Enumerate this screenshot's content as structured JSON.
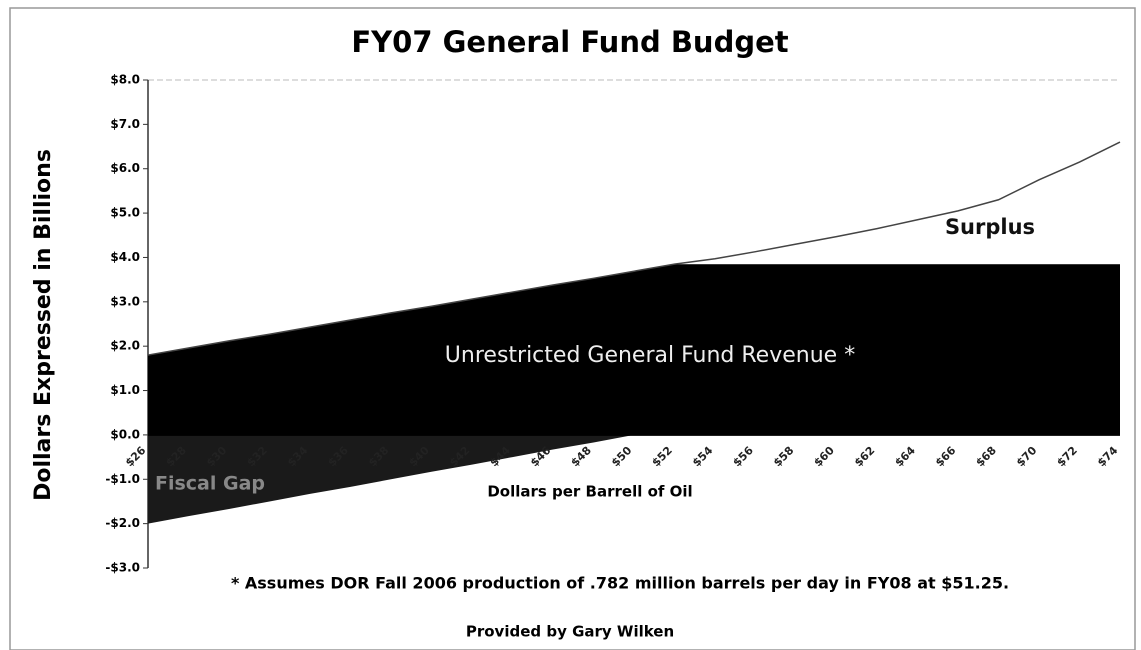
{
  "chart_data": {
    "type": "area",
    "title": "FY07 General Fund Budget",
    "y_label": "Dollars Expressed in Billions",
    "x_label": "Dollars per Barrell of Oil",
    "footnote": "* Assumes DOR Fall 2006 production of .782 million barrels per day in FY08 at $51.25.",
    "source": "Provided by Gary Wilken",
    "categories": [
      "$26",
      "$28",
      "$30",
      "$32",
      "$34",
      "$36",
      "$38",
      "$40",
      "$42",
      "$44",
      "$46",
      "$48",
      "$50",
      "$52",
      "$54",
      "$56",
      "$58",
      "$60",
      "$62",
      "$64",
      "$66",
      "$68",
      "$70",
      "$72",
      "$74"
    ],
    "series": [
      {
        "name": "Unrestricted General Fund Revenue *",
        "color": "#000000",
        "values": [
          1.8,
          1.96,
          2.12,
          2.27,
          2.43,
          2.59,
          2.75,
          2.9,
          3.06,
          3.22,
          3.38,
          3.53,
          3.69,
          3.85,
          3.85,
          3.85,
          3.85,
          3.85,
          3.85,
          3.85,
          3.85,
          3.85,
          3.85,
          3.85,
          3.85
        ]
      },
      {
        "name": "Surplus",
        "color": "#ffffff",
        "values": [
          0,
          0,
          0,
          0,
          0,
          0,
          0,
          0,
          0,
          0,
          0,
          0,
          0,
          0,
          0.12,
          0.28,
          0.45,
          0.62,
          0.8,
          1.0,
          1.2,
          1.45,
          1.9,
          2.3,
          2.75
        ]
      },
      {
        "name": "Fiscal Gap",
        "color": "#1a1a1a",
        "values": [
          -2.0,
          -1.83,
          -1.67,
          -1.5,
          -1.33,
          -1.17,
          -1.0,
          -0.83,
          -0.67,
          -0.5,
          -0.33,
          -0.17,
          0,
          0,
          0,
          0,
          0,
          0,
          0,
          0,
          0,
          0,
          0,
          0,
          0
        ]
      }
    ],
    "ylim": [
      -3,
      8
    ],
    "yticks": [
      {
        "value": -3,
        "label": "-$3.0"
      },
      {
        "value": -2,
        "label": "-$2.0"
      },
      {
        "value": -1,
        "label": "-$1.0"
      },
      {
        "value": 0,
        "label": "$0.0"
      },
      {
        "value": 1,
        "label": "$1.0"
      },
      {
        "value": 2,
        "label": "$2.0"
      },
      {
        "value": 3,
        "label": "$3.0"
      },
      {
        "value": 4,
        "label": "$4.0"
      },
      {
        "value": 5,
        "label": "$5.0"
      },
      {
        "value": 6,
        "label": "$6.0"
      },
      {
        "value": 7,
        "label": "$7.0"
      },
      {
        "value": 8,
        "label": "$8.0"
      }
    ]
  }
}
